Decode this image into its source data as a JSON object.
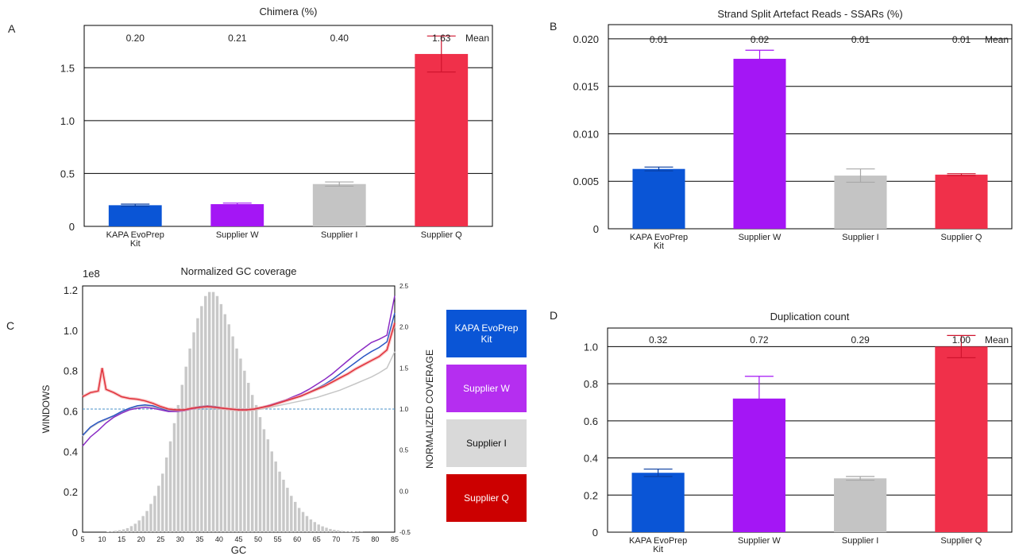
{
  "panels": {
    "a": "A",
    "b": "B",
    "c": "C",
    "d": "D"
  },
  "colors": {
    "kapa": "#0a55d6",
    "w": "#a416f5",
    "i": "#c4c4c4",
    "q": "#f0304a",
    "legend_kapa": "#0a55d6",
    "legend_w": "#b52ef0",
    "legend_i": "#d9d9d9",
    "legend_q": "#cc0000"
  },
  "legend": {
    "kapa": "KAPA EvoPrep Kit",
    "w": "Supplier W",
    "i": "Supplier I",
    "q": "Supplier Q"
  },
  "chart_data": [
    {
      "type": "bar",
      "title": "Chimera (%)",
      "categories": [
        "KAPA EvoPrep Kit",
        "Supplier W",
        "Supplier I",
        "Supplier Q"
      ],
      "values": [
        0.2,
        0.21,
        0.4,
        1.63
      ],
      "errors": [
        0.01,
        0.01,
        0.02,
        0.17
      ],
      "mean_labels": [
        "0.20",
        "0.21",
        "0.40",
        "1.63"
      ],
      "mean_label": "Mean",
      "ylim": [
        0,
        1.9
      ],
      "yticks": [
        0,
        0.5,
        1.0,
        1.5
      ],
      "ytick_labels": [
        "0",
        "0.5",
        "1.0",
        "1.5"
      ],
      "grid": true
    },
    {
      "type": "bar",
      "title": "Strand Split Artefact Reads - SSARs (%)",
      "categories": [
        "KAPA EvoPrep Kit",
        "Supplier W",
        "Supplier I",
        "Supplier Q"
      ],
      "values": [
        0.0063,
        0.0179,
        0.0056,
        0.0057
      ],
      "errors": [
        0.0002,
        0.0009,
        0.0007,
        0.0001
      ],
      "mean_labels": [
        "0.01",
        "0.02",
        "0.01",
        "0.01"
      ],
      "mean_label": "Mean",
      "ylim": [
        0,
        0.0215
      ],
      "yticks": [
        0,
        0.005,
        0.01,
        0.015,
        0.02
      ],
      "ytick_labels": [
        "0",
        "0.005",
        "0.010",
        "0.015",
        "0.020"
      ],
      "grid": true
    },
    {
      "type": "bar",
      "title": "Duplication count",
      "categories": [
        "KAPA EvoPrep Kit",
        "Supplier W",
        "Supplier I",
        "Supplier Q"
      ],
      "values": [
        0.32,
        0.72,
        0.29,
        1.0
      ],
      "errors": [
        0.02,
        0.12,
        0.01,
        0.06
      ],
      "mean_labels": [
        "0.32",
        "0.72",
        "0.29",
        "1.00"
      ],
      "mean_label": "Mean",
      "ylim": [
        0,
        1.1
      ],
      "yticks": [
        0,
        0.2,
        0.4,
        0.6,
        0.8,
        1.0
      ],
      "ytick_labels": [
        "0",
        "0.2",
        "0.4",
        "0.6",
        "0.8",
        "1.0"
      ],
      "grid": true
    },
    {
      "type": "line",
      "title": "Normalized GC coverage",
      "xlabel": "GC",
      "ylabel": "WINDOWS",
      "y2label": "NORMALIZED COVERAGE",
      "yexp": "1e8",
      "xlim": [
        5,
        85
      ],
      "xticks": [
        5,
        10,
        15,
        20,
        25,
        30,
        35,
        40,
        45,
        50,
        55,
        60,
        65,
        70,
        75,
        80,
        85
      ],
      "ylim": [
        0,
        1.22
      ],
      "yticks": [
        0,
        0.2,
        0.4,
        0.6,
        0.8,
        1.0,
        1.2
      ],
      "ytick_labels": [
        "0",
        "0.2",
        "0.4",
        "0.6",
        "0.8",
        "1.0",
        "1.2"
      ],
      "y2lim": [
        -0.5,
        2.5
      ],
      "y2ticks": [
        -0.5,
        0.0,
        0.5,
        1.0,
        1.5,
        2.0,
        2.5
      ],
      "y2tick_labels": [
        "-0.5",
        "0.0",
        "0.5",
        "1.0",
        "1.5",
        "2.0",
        "2.5"
      ],
      "reference_line": 1.0,
      "histogram": {
        "x": [
          5,
          6,
          7,
          8,
          9,
          10,
          11,
          12,
          13,
          14,
          15,
          16,
          17,
          18,
          19,
          20,
          21,
          22,
          23,
          24,
          25,
          26,
          27,
          28,
          29,
          30,
          31,
          32,
          33,
          34,
          35,
          36,
          37,
          38,
          39,
          40,
          41,
          42,
          43,
          44,
          45,
          46,
          47,
          48,
          49,
          50,
          51,
          52,
          53,
          54,
          55,
          56,
          57,
          58,
          59,
          60,
          61,
          62,
          63,
          64,
          65,
          66,
          67,
          68,
          69,
          70,
          71,
          72,
          73,
          74,
          75,
          76,
          77,
          78,
          79,
          80,
          81,
          82,
          83,
          84
        ],
        "values": [
          0.0,
          0.0,
          0.0,
          0.0,
          0.0,
          0.0,
          0.002,
          0.004,
          0.007,
          0.01,
          0.014,
          0.02,
          0.03,
          0.042,
          0.058,
          0.08,
          0.105,
          0.14,
          0.18,
          0.23,
          0.29,
          0.37,
          0.45,
          0.54,
          0.63,
          0.73,
          0.82,
          0.91,
          0.99,
          1.06,
          1.12,
          1.17,
          1.19,
          1.19,
          1.17,
          1.13,
          1.08,
          1.03,
          0.97,
          0.91,
          0.86,
          0.8,
          0.74,
          0.68,
          0.63,
          0.57,
          0.51,
          0.46,
          0.4,
          0.35,
          0.3,
          0.26,
          0.22,
          0.18,
          0.15,
          0.12,
          0.1,
          0.08,
          0.063,
          0.05,
          0.038,
          0.029,
          0.022,
          0.016,
          0.012,
          0.009,
          0.006,
          0.004,
          0.003,
          0.002,
          0.001,
          0.001,
          0.0,
          0.0,
          0.0,
          0.0,
          0.0,
          0.0,
          0.0,
          0.0
        ]
      },
      "series": [
        {
          "name": "KAPA EvoPrep Kit",
          "x": [
            5,
            7,
            9,
            11,
            13,
            15,
            17,
            19,
            21,
            23,
            25,
            27,
            29,
            31,
            33,
            35,
            37,
            39,
            41,
            43,
            45,
            47,
            49,
            51,
            53,
            55,
            57,
            59,
            61,
            63,
            65,
            67,
            69,
            71,
            73,
            75,
            77,
            79,
            81,
            83,
            85
          ],
          "values": [
            0.68,
            0.78,
            0.84,
            0.88,
            0.92,
            0.97,
            1.01,
            1.04,
            1.05,
            1.04,
            1.01,
            0.98,
            0.98,
            0.99,
            1.01,
            1.03,
            1.04,
            1.03,
            1.01,
            1.0,
            0.99,
            0.99,
            1.0,
            1.02,
            1.04,
            1.07,
            1.1,
            1.13,
            1.16,
            1.2,
            1.25,
            1.3,
            1.36,
            1.43,
            1.5,
            1.57,
            1.64,
            1.7,
            1.75,
            1.82,
            2.17
          ]
        },
        {
          "name": "Supplier W",
          "x": [
            5,
            7,
            9,
            11,
            13,
            15,
            17,
            19,
            21,
            23,
            25,
            27,
            29,
            31,
            33,
            35,
            37,
            39,
            41,
            43,
            45,
            47,
            49,
            51,
            53,
            55,
            57,
            59,
            61,
            63,
            65,
            67,
            69,
            71,
            73,
            75,
            77,
            79,
            81,
            83,
            85
          ],
          "values": [
            0.55,
            0.66,
            0.74,
            0.83,
            0.9,
            0.95,
            0.99,
            1.01,
            1.02,
            1.01,
            0.99,
            0.97,
            0.97,
            0.98,
            1.0,
            1.02,
            1.03,
            1.02,
            1.01,
            1.0,
            0.99,
            0.99,
            1.0,
            1.02,
            1.05,
            1.08,
            1.11,
            1.15,
            1.19,
            1.24,
            1.3,
            1.36,
            1.43,
            1.51,
            1.59,
            1.67,
            1.74,
            1.81,
            1.85,
            1.9,
            2.38
          ]
        },
        {
          "name": "Supplier I",
          "x": [
            5,
            7,
            9,
            11,
            13,
            15,
            17,
            19,
            21,
            23,
            25,
            27,
            29,
            31,
            33,
            35,
            37,
            39,
            41,
            43,
            45,
            47,
            49,
            51,
            53,
            55,
            57,
            59,
            61,
            63,
            65,
            67,
            69,
            71,
            73,
            75,
            77,
            79,
            81,
            83,
            85
          ],
          "values": [
            0.67,
            0.77,
            0.83,
            0.87,
            0.91,
            0.96,
            1.0,
            1.03,
            1.04,
            1.03,
            1.0,
            0.98,
            0.98,
            0.99,
            1.01,
            1.03,
            1.03,
            1.02,
            1.0,
            0.99,
            0.98,
            0.98,
            0.99,
            1.0,
            1.02,
            1.04,
            1.06,
            1.08,
            1.1,
            1.12,
            1.14,
            1.17,
            1.2,
            1.23,
            1.27,
            1.31,
            1.35,
            1.39,
            1.44,
            1.5,
            1.7
          ]
        },
        {
          "name": "Supplier Q",
          "x": [
            5,
            7,
            9,
            10,
            11,
            13,
            15,
            17,
            19,
            21,
            23,
            25,
            27,
            29,
            31,
            33,
            35,
            37,
            39,
            41,
            43,
            45,
            47,
            49,
            51,
            53,
            55,
            57,
            59,
            61,
            63,
            65,
            67,
            69,
            71,
            73,
            75,
            77,
            79,
            81,
            83,
            85
          ],
          "values": [
            1.15,
            1.2,
            1.22,
            1.5,
            1.24,
            1.2,
            1.15,
            1.13,
            1.12,
            1.1,
            1.07,
            1.03,
            1.0,
            0.99,
            0.99,
            1.01,
            1.02,
            1.03,
            1.02,
            1.01,
            1.0,
            0.99,
            0.99,
            1.0,
            1.02,
            1.04,
            1.07,
            1.1,
            1.13,
            1.16,
            1.2,
            1.24,
            1.28,
            1.33,
            1.38,
            1.43,
            1.49,
            1.54,
            1.59,
            1.64,
            1.72,
            2.05
          ]
        }
      ]
    }
  ]
}
